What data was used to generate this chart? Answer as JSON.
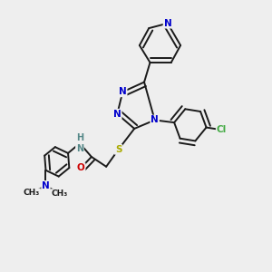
{
  "background_color": "#eeeeee",
  "figsize": [
    3.0,
    3.0
  ],
  "dpi": 100,
  "bond_color": "#1a1a1a",
  "N_color": "#0000cc",
  "S_color": "#aaaa00",
  "O_color": "#cc0000",
  "Cl_color": "#44aa44",
  "H_color": "#558888",
  "lw": 1.4,
  "fs": 7.5,
  "xlim": [
    -0.1,
    1.05
  ],
  "ylim": [
    -0.05,
    1.05
  ]
}
